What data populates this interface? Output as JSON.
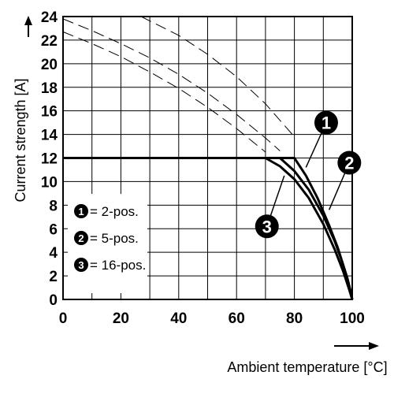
{
  "chart_data": {
    "type": "line",
    "xlabel": "Ambient temperature [°C]",
    "ylabel": "Current strength [A]",
    "xlim": [
      0,
      100
    ],
    "ylim": [
      0,
      24
    ],
    "x_ticks": [
      "0",
      "20",
      "40",
      "60",
      "80",
      "100"
    ],
    "y_ticks": [
      "0",
      "2",
      "4",
      "6",
      "8",
      "10",
      "12",
      "14",
      "16",
      "18",
      "20",
      "22",
      "24"
    ],
    "grid": true,
    "legend_position": "bottom-left",
    "legend": [
      {
        "marker": "1",
        "text": "= 2-pos."
      },
      {
        "marker": "2",
        "text": "= 5-pos."
      },
      {
        "marker": "3",
        "text": "= 16-pos."
      }
    ],
    "series": [
      {
        "marker": "1",
        "style": "solid",
        "x": [
          0,
          80,
          84,
          88,
          92,
          95,
          97,
          98.5,
          99.5,
          100
        ],
        "y": [
          12,
          12,
          10.5,
          8.6,
          6.3,
          4.4,
          2.8,
          1.6,
          0.6,
          0
        ]
      },
      {
        "marker": "2",
        "style": "solid",
        "x": [
          0,
          75,
          80,
          85,
          90,
          94,
          96.5,
          98.3,
          99.4,
          100
        ],
        "y": [
          12,
          12,
          10.9,
          9.3,
          7.1,
          4.9,
          3.2,
          1.8,
          0.7,
          0
        ]
      },
      {
        "marker": "3",
        "style": "solid",
        "x": [
          0,
          70,
          75,
          80,
          85,
          90,
          94,
          97,
          99,
          100
        ],
        "y": [
          12,
          12,
          11.3,
          10.2,
          8.6,
          6.4,
          4.2,
          2.3,
          0.8,
          0
        ]
      },
      {
        "style": "dashed",
        "x": [
          27,
          40,
          50,
          60,
          70,
          80
        ],
        "y": [
          24,
          22.4,
          20.8,
          18.9,
          16.6,
          13.8
        ]
      },
      {
        "style": "dashed",
        "x": [
          0,
          10,
          20,
          30,
          40,
          50,
          60,
          70,
          75
        ],
        "y": [
          23.8,
          22.8,
          21.7,
          20.5,
          19.1,
          17.5,
          15.7,
          13.7,
          12.6
        ]
      },
      {
        "style": "dashed",
        "x": [
          0,
          10,
          20,
          30,
          40,
          50,
          60,
          70
        ],
        "y": [
          22.7,
          21.7,
          20.6,
          19.3,
          17.9,
          16.3,
          14.5,
          12.5
        ]
      }
    ],
    "callouts": [
      {
        "marker": "1",
        "badge_at": [
          91,
          15
        ],
        "line_to": [
          84,
          11.2
        ]
      },
      {
        "marker": "2",
        "badge_at": [
          99,
          11.6
        ],
        "line_to": [
          92,
          7.6
        ]
      },
      {
        "marker": "3",
        "badge_at": [
          70.5,
          6.2
        ],
        "line_to": [
          76.5,
          10.5
        ]
      }
    ],
    "axis_arrows": {
      "y": "up",
      "x": "right"
    }
  }
}
